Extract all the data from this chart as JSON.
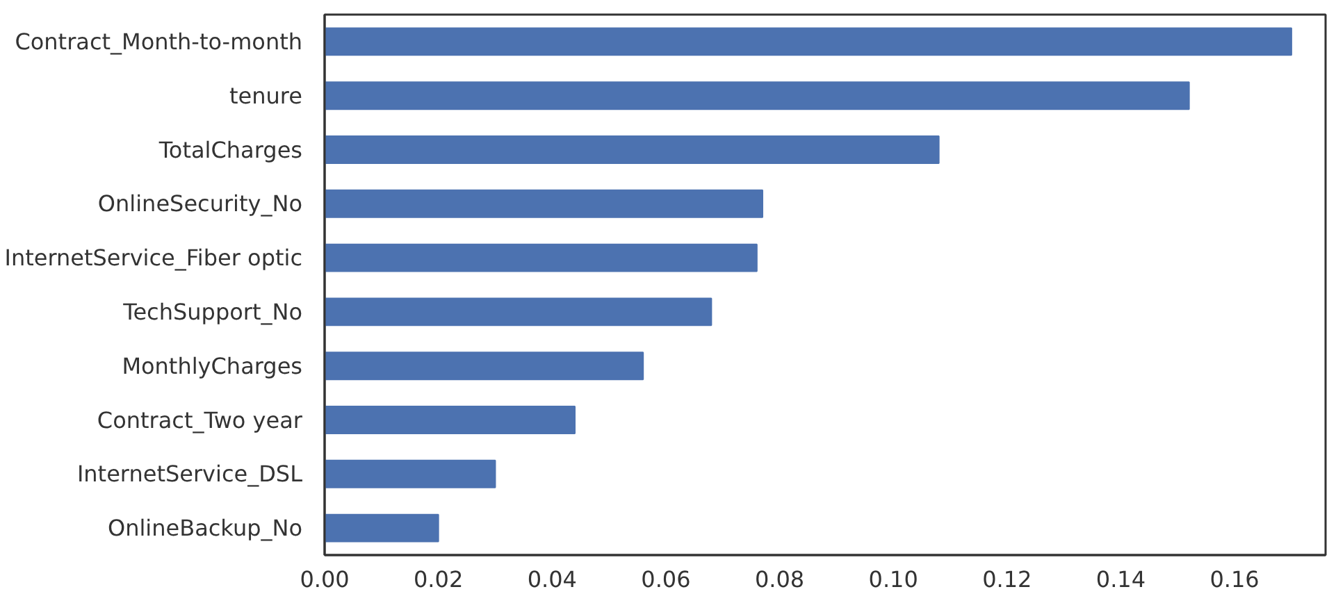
{
  "chart_data": {
    "type": "bar",
    "orientation": "horizontal",
    "categories": [
      "Contract_Month-to-month",
      "tenure",
      "TotalCharges",
      "OnlineSecurity_No",
      "InternetService_Fiber optic",
      "TechSupport_No",
      "MonthlyCharges",
      "Contract_Two year",
      "InternetService_DSL",
      "OnlineBackup_No"
    ],
    "values": [
      0.17,
      0.152,
      0.108,
      0.077,
      0.076,
      0.068,
      0.056,
      0.044,
      0.03,
      0.02
    ],
    "color": "#4c72b0",
    "xlim": [
      0,
      0.176
    ],
    "xticks": [
      {
        "value": 0,
        "label": "0.00"
      },
      {
        "value": 0.02,
        "label": "0.02"
      },
      {
        "value": 0.04,
        "label": "0.04"
      },
      {
        "value": 0.06,
        "label": "0.06"
      },
      {
        "value": 0.08,
        "label": "0.08"
      },
      {
        "value": 0.1,
        "label": "0.10"
      },
      {
        "value": 0.12,
        "label": "0.12"
      },
      {
        "value": 0.14,
        "label": "0.14"
      },
      {
        "value": 0.16,
        "label": "0.16"
      }
    ],
    "grid": false
  }
}
